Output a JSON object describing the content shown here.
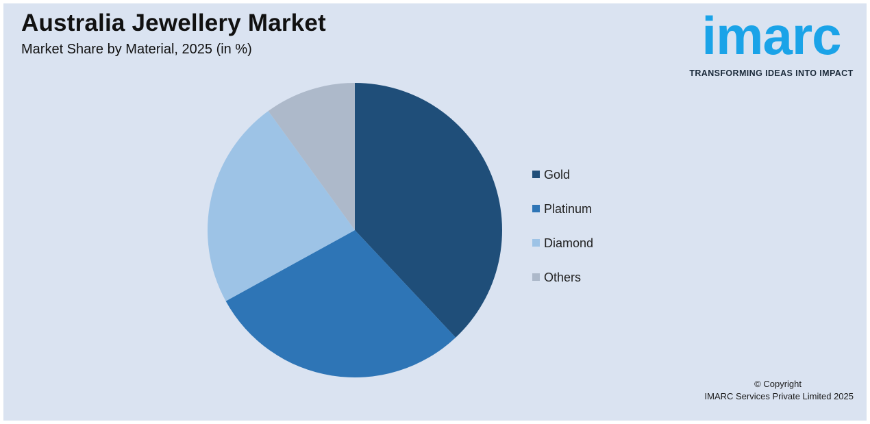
{
  "header": {
    "title": "Australia Jewellery Market",
    "subtitle": "Market Share by Material, 2025 (in %)"
  },
  "logo": {
    "wordmark": "imarc",
    "tagline": "TRANSFORMING IDEAS INTO IMPACT",
    "color": "#1aa3e8"
  },
  "footer": {
    "copyright": "© Copyright",
    "company": "IMARC Services Private Limited 2025"
  },
  "chart_data": {
    "type": "pie",
    "categories": [
      "Gold",
      "Platinum",
      "Diamond",
      "Others"
    ],
    "values": [
      38,
      29,
      23,
      10
    ],
    "colors": [
      "#1f4e79",
      "#2e75b6",
      "#9dc3e6",
      "#adb9ca"
    ],
    "start": "top",
    "direction": "clockwise",
    "legend_position": "right"
  }
}
